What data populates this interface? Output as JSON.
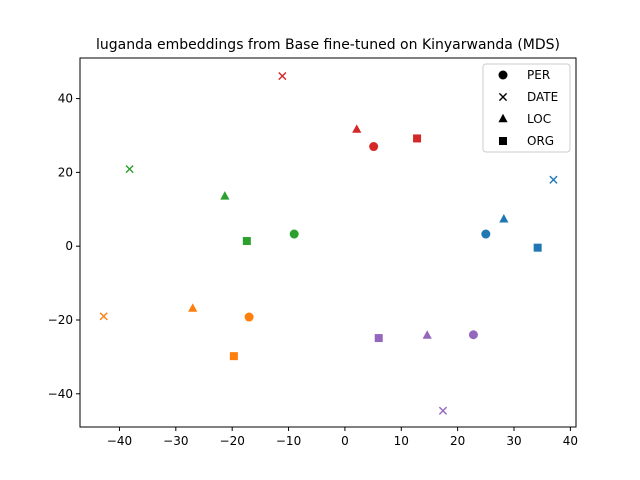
{
  "chart_data": {
    "type": "scatter",
    "title": "luganda embeddings from Base fine-tuned on Kinyarwanda (MDS)",
    "xlabel": "",
    "ylabel": "",
    "xlim": [
      -47,
      41
    ],
    "ylim": [
      -49,
      51
    ],
    "xticks": [
      -40,
      -30,
      -20,
      -10,
      0,
      10,
      20,
      30,
      40
    ],
    "yticks": [
      -40,
      -20,
      0,
      20,
      40
    ],
    "grid": false,
    "legend": {
      "position": "top-right",
      "entries": [
        {
          "label": "PER",
          "marker": "circle"
        },
        {
          "label": "DATE",
          "marker": "x"
        },
        {
          "label": "LOC",
          "marker": "triangle"
        },
        {
          "label": "ORG",
          "marker": "square"
        }
      ]
    },
    "colors": {
      "blue": "#1f77b4",
      "orange": "#ff7f0e",
      "green": "#2ca02c",
      "red": "#d62728",
      "purple": "#9467bd"
    },
    "points": [
      {
        "x": 25.0,
        "y": 3.3,
        "marker": "circle",
        "color": "blue"
      },
      {
        "x": 37.0,
        "y": 18.0,
        "marker": "x",
        "color": "blue"
      },
      {
        "x": 28.2,
        "y": 7.3,
        "marker": "triangle",
        "color": "blue"
      },
      {
        "x": 34.2,
        "y": -0.4,
        "marker": "square",
        "color": "blue"
      },
      {
        "x": -17.0,
        "y": -19.2,
        "marker": "circle",
        "color": "orange"
      },
      {
        "x": -42.8,
        "y": -19.0,
        "marker": "x",
        "color": "orange"
      },
      {
        "x": -27.0,
        "y": -16.9,
        "marker": "triangle",
        "color": "orange"
      },
      {
        "x": -19.7,
        "y": -29.8,
        "marker": "square",
        "color": "orange"
      },
      {
        "x": -9.0,
        "y": 3.3,
        "marker": "circle",
        "color": "green"
      },
      {
        "x": -38.2,
        "y": 20.9,
        "marker": "x",
        "color": "green"
      },
      {
        "x": -21.3,
        "y": 13.5,
        "marker": "triangle",
        "color": "green"
      },
      {
        "x": -17.4,
        "y": 1.4,
        "marker": "square",
        "color": "green"
      },
      {
        "x": 5.1,
        "y": 27.0,
        "marker": "circle",
        "color": "red"
      },
      {
        "x": -11.1,
        "y": 46.1,
        "marker": "x",
        "color": "red"
      },
      {
        "x": 2.1,
        "y": 31.6,
        "marker": "triangle",
        "color": "red"
      },
      {
        "x": 12.8,
        "y": 29.2,
        "marker": "square",
        "color": "red"
      },
      {
        "x": 22.8,
        "y": -24.0,
        "marker": "circle",
        "color": "purple"
      },
      {
        "x": 17.4,
        "y": -44.6,
        "marker": "x",
        "color": "purple"
      },
      {
        "x": 14.6,
        "y": -24.2,
        "marker": "triangle",
        "color": "purple"
      },
      {
        "x": 6.0,
        "y": -24.9,
        "marker": "square",
        "color": "purple"
      }
    ]
  }
}
